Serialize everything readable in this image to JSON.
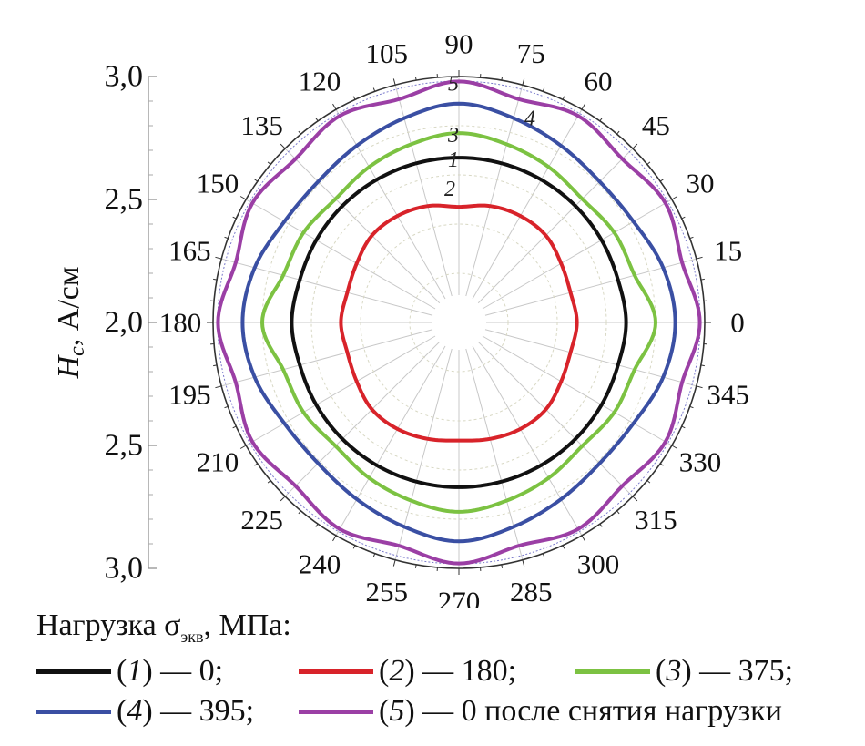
{
  "chart_data": {
    "type": "polar-line",
    "angular_ticks": [
      "0",
      "15",
      "30",
      "45",
      "60",
      "75",
      "90",
      "105",
      "120",
      "135",
      "150",
      "165",
      "180",
      "195",
      "210",
      "225",
      "240",
      "255",
      "270",
      "285",
      "300",
      "315",
      "330",
      "345"
    ],
    "ylabel": "H",
    "ylabel_sub": "c",
    "ylabel_unit": ", А/см",
    "radial_center_value": 2.0,
    "radial_edge_value": 3.0,
    "y_ticks_top": [
      "3,0",
      "2,5",
      "2,0"
    ],
    "y_ticks_bottom": [
      "2,5",
      "3,0"
    ],
    "series": [
      {
        "label": "1",
        "color": "#111111",
        "angles_deg": [
          0,
          15,
          30,
          45,
          60,
          75,
          90,
          105,
          120,
          135,
          150,
          165,
          180,
          195,
          210,
          225,
          240,
          255,
          270,
          285,
          300,
          315,
          330,
          345
        ],
        "values": [
          2.68,
          2.67,
          2.67,
          2.67,
          2.67,
          2.67,
          2.67,
          2.67,
          2.67,
          2.67,
          2.67,
          2.67,
          2.68,
          2.67,
          2.67,
          2.67,
          2.67,
          2.67,
          2.67,
          2.67,
          2.67,
          2.67,
          2.67,
          2.67
        ]
      },
      {
        "label": "2",
        "color": "#d8232a",
        "angles_deg": [
          0,
          15,
          30,
          45,
          60,
          75,
          90,
          105,
          120,
          135,
          150,
          165,
          180,
          195,
          210,
          225,
          240,
          255,
          270,
          285,
          300,
          315,
          330,
          345
        ],
        "values": [
          2.48,
          2.47,
          2.48,
          2.5,
          2.5,
          2.49,
          2.47,
          2.49,
          2.5,
          2.5,
          2.48,
          2.47,
          2.48,
          2.47,
          2.48,
          2.5,
          2.5,
          2.49,
          2.48,
          2.49,
          2.5,
          2.5,
          2.48,
          2.47
        ]
      },
      {
        "label": "3",
        "color": "#7cc242",
        "angles_deg": [
          0,
          15,
          30,
          45,
          60,
          75,
          90,
          105,
          120,
          135,
          150,
          165,
          180,
          195,
          210,
          225,
          240,
          255,
          270,
          285,
          300,
          315,
          330,
          345
        ],
        "values": [
          2.8,
          2.74,
          2.73,
          2.71,
          2.73,
          2.75,
          2.77,
          2.75,
          2.73,
          2.71,
          2.73,
          2.74,
          2.8,
          2.74,
          2.73,
          2.71,
          2.73,
          2.75,
          2.77,
          2.75,
          2.73,
          2.71,
          2.73,
          2.74
        ]
      },
      {
        "label": "4",
        "color": "#3a4fa3",
        "angles_deg": [
          0,
          15,
          30,
          45,
          60,
          75,
          90,
          105,
          120,
          135,
          150,
          165,
          180,
          195,
          210,
          225,
          240,
          255,
          270,
          285,
          300,
          315,
          330,
          345
        ],
        "values": [
          2.88,
          2.86,
          2.82,
          2.81,
          2.83,
          2.86,
          2.89,
          2.86,
          2.83,
          2.81,
          2.82,
          2.86,
          2.88,
          2.86,
          2.82,
          2.81,
          2.83,
          2.86,
          2.89,
          2.86,
          2.83,
          2.81,
          2.82,
          2.86
        ]
      },
      {
        "label": "5",
        "color": "#9b3fa5",
        "angles_deg": [
          0,
          15,
          30,
          45,
          60,
          75,
          90,
          105,
          120,
          135,
          150,
          165,
          180,
          195,
          210,
          225,
          240,
          255,
          270,
          285,
          300,
          315,
          330,
          345
        ],
        "values": [
          2.98,
          2.94,
          2.97,
          2.94,
          2.97,
          2.94,
          2.98,
          2.94,
          2.97,
          2.94,
          2.97,
          2.94,
          2.98,
          2.94,
          2.97,
          2.94,
          2.97,
          2.94,
          2.98,
          2.94,
          2.97,
          2.94,
          2.97,
          2.94
        ]
      }
    ],
    "legend_title": "Нагрузка σ",
    "legend_title_sub": "экв",
    "legend_title_unit": ", МПа:",
    "legend": [
      {
        "num": "1",
        "rest": " — 0;",
        "color": "#111111"
      },
      {
        "num": "2",
        "rest": " — 180;",
        "color": "#d8232a"
      },
      {
        "num": "3",
        "rest": " — 375;",
        "color": "#7cc242"
      },
      {
        "num": "4",
        "rest": " — 395;",
        "color": "#3a4fa3"
      },
      {
        "num": "5",
        "rest": " — 0 после снятия нагрузки",
        "color": "#9b3fa5"
      }
    ]
  }
}
